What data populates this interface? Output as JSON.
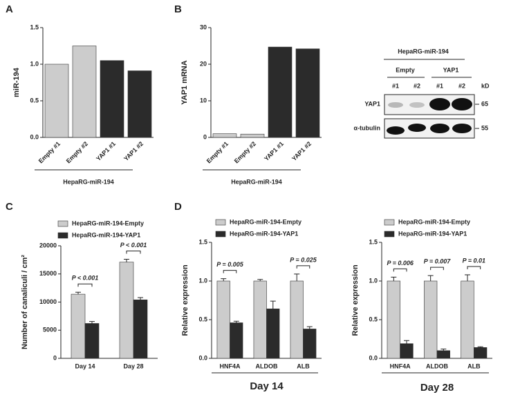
{
  "panels": [
    "A",
    "B",
    "C",
    "D"
  ],
  "chart_data": [
    {
      "type": "bar",
      "ylabel": "miR-194",
      "categories": [
        "Empty #1",
        "Empty #2",
        "YAP1 #1",
        "YAP1 #2"
      ],
      "values": [
        1.0,
        1.25,
        1.05,
        0.91
      ],
      "colors": [
        "#cccccc",
        "#cccccc",
        "#2b2b2b",
        "#2b2b2b"
      ],
      "ylim": [
        0,
        1.5
      ],
      "yticks": [
        {
          "value": 0,
          "label": "0.0"
        },
        0.5,
        {
          "value": 1,
          "label": "1.0"
        },
        1.5
      ],
      "group_label": "HepaRG-miR-194"
    },
    {
      "type": "bar",
      "ylabel": "YAP1 mRNA",
      "categories": [
        "Empty #1",
        "Empty #2",
        "YAP1 #1",
        "YAP1 #2"
      ],
      "values": [
        1.0,
        0.9,
        24.7,
        24.2
      ],
      "colors": [
        "#cccccc",
        "#cccccc",
        "#2b2b2b",
        "#2b2b2b"
      ],
      "ylim": [
        0,
        30
      ],
      "yticks": [
        0,
        10,
        20,
        30
      ],
      "group_label": "HepaRG-miR-194"
    },
    {
      "type": "grouped_bar",
      "ylabel": "Number of canaliculi / cm²",
      "categories": [
        "Day 14",
        "Day 28"
      ],
      "series": [
        {
          "name": "HepaRG-miR-194-Empty",
          "color": "#cccccc",
          "values": [
            11400,
            17100
          ],
          "errors": [
            350,
            500
          ]
        },
        {
          "name": "HepaRG-miR-194-YAP1",
          "color": "#2b2b2b",
          "values": [
            6200,
            10400
          ],
          "errors": [
            350,
            400
          ]
        }
      ],
      "ylim": [
        0,
        20000
      ],
      "yticks": [
        0,
        5000,
        10000,
        15000,
        20000
      ],
      "pvalues": [
        "P < 0.001",
        "P < 0.001"
      ],
      "legend": "top-left"
    },
    {
      "type": "grouped_bar",
      "ylabel": "Relative expression",
      "xlabel": "Day 14",
      "categories": [
        "HNF4A",
        "ALDOB",
        "ALB"
      ],
      "series": [
        {
          "name": "HepaRG-miR-194-Empty",
          "color": "#cccccc",
          "values": [
            1.0,
            1.0,
            1.0
          ],
          "errors": [
            0.03,
            0.02,
            0.09
          ]
        },
        {
          "name": "HepaRG-miR-194-YAP1",
          "color": "#2b2b2b",
          "values": [
            0.46,
            0.64,
            0.38
          ],
          "errors": [
            0.02,
            0.1,
            0.03
          ]
        }
      ],
      "ylim": [
        0,
        1.5
      ],
      "yticks": [
        {
          "value": 0,
          "label": "0.0"
        },
        0.5,
        {
          "value": 1,
          "label": "1.0"
        },
        1.5
      ],
      "pvalues": [
        "P = 0.005",
        null,
        "P = 0.025"
      ],
      "legend": "top-left"
    },
    {
      "type": "grouped_bar",
      "ylabel": "Relative expression",
      "xlabel": "Day 28",
      "categories": [
        "HNF4A",
        "ALDOB",
        "ALB"
      ],
      "series": [
        {
          "name": "HepaRG-miR-194-Empty",
          "color": "#cccccc",
          "values": [
            1.0,
            1.0,
            1.0
          ],
          "errors": [
            0.05,
            0.07,
            0.08
          ]
        },
        {
          "name": "HepaRG-miR-194-YAP1",
          "color": "#2b2b2b",
          "values": [
            0.19,
            0.1,
            0.14
          ],
          "errors": [
            0.04,
            0.02,
            0.01
          ]
        }
      ],
      "ylim": [
        0,
        1.5
      ],
      "yticks": [
        {
          "value": 0,
          "label": "0.0"
        },
        0.5,
        {
          "value": 1,
          "label": "1.0"
        },
        1.5
      ],
      "pvalues": [
        "P = 0.006",
        "P = 0.007",
        "P = 0.01"
      ],
      "legend": "top-left"
    }
  ],
  "blot": {
    "header": "HepaRG-miR-194",
    "groups": [
      "Empty",
      "YAP1"
    ],
    "lanes": [
      "#1",
      "#2",
      "#1",
      "#2"
    ],
    "unit": "kD",
    "rows": [
      {
        "label": "YAP1",
        "kd": "65"
      },
      {
        "label": "α-tubulin",
        "kd": "55"
      }
    ]
  }
}
